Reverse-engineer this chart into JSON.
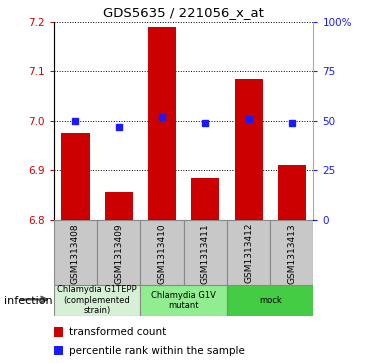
{
  "title": "GDS5635 / 221056_x_at",
  "samples": [
    "GSM1313408",
    "GSM1313409",
    "GSM1313410",
    "GSM1313411",
    "GSM1313412",
    "GSM1313413"
  ],
  "transformed_counts": [
    6.975,
    6.855,
    7.19,
    6.885,
    7.085,
    6.91
  ],
  "percentile_ranks": [
    50,
    47,
    52,
    49,
    51,
    49
  ],
  "ylim_left": [
    6.8,
    7.2
  ],
  "ylim_right": [
    0,
    100
  ],
  "yticks_left": [
    6.8,
    6.9,
    7.0,
    7.1,
    7.2
  ],
  "yticks_right": [
    0,
    25,
    50,
    75,
    100
  ],
  "bar_color": "#cc0000",
  "dot_color": "#1a1aff",
  "bar_bottom": 6.8,
  "groups": [
    {
      "label": "Chlamydia G1TEPP\n(complemented\nstrain)",
      "start": 0,
      "end": 2,
      "color": "#d5f0d5"
    },
    {
      "label": "Chlamydia G1V\nmutant",
      "start": 2,
      "end": 4,
      "color": "#90ee90"
    },
    {
      "label": "mock",
      "start": 4,
      "end": 6,
      "color": "#44cc44"
    }
  ],
  "infection_label": "infection",
  "legend_items": [
    {
      "color": "#cc0000",
      "label": "transformed count"
    },
    {
      "color": "#1a1aff",
      "label": "percentile rank within the sample"
    }
  ],
  "background_color": "#ffffff",
  "tick_label_color_left": "#cc0000",
  "tick_label_color_right": "#1a1aff",
  "sample_box_color": "#c8c8c8",
  "sample_box_edge": "#888888"
}
